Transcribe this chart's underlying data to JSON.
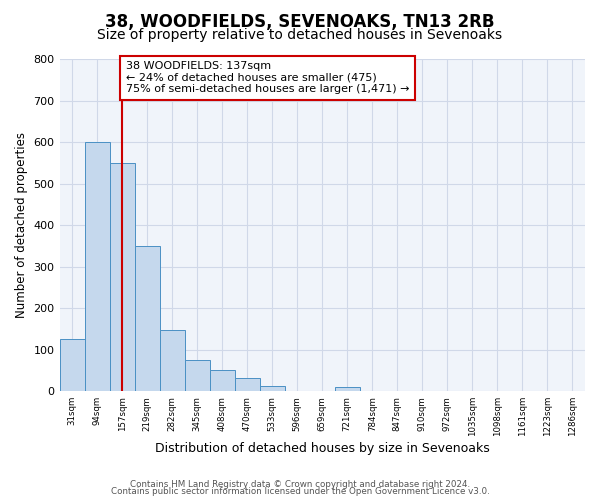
{
  "title": "38, WOODFIELDS, SEVENOAKS, TN13 2RB",
  "subtitle": "Size of property relative to detached houses in Sevenoaks",
  "xlabel": "Distribution of detached houses by size in Sevenoaks",
  "ylabel": "Number of detached properties",
  "bin_labels": [
    "31sqm",
    "94sqm",
    "157sqm",
    "219sqm",
    "282sqm",
    "345sqm",
    "408sqm",
    "470sqm",
    "533sqm",
    "596sqm",
    "659sqm",
    "721sqm",
    "784sqm",
    "847sqm",
    "910sqm",
    "972sqm",
    "1035sqm",
    "1098sqm",
    "1161sqm",
    "1223sqm",
    "1286sqm"
  ],
  "bar_heights": [
    125,
    600,
    550,
    350,
    148,
    75,
    50,
    33,
    13,
    0,
    0,
    10,
    0,
    0,
    0,
    0,
    0,
    0,
    0,
    0,
    0
  ],
  "bar_color": "#c5d8ed",
  "bar_edge_color": "#4a90c4",
  "vline_x": 2.0,
  "vline_color": "#cc0000",
  "annotation_text": "38 WOODFIELDS: 137sqm\n← 24% of detached houses are smaller (475)\n75% of semi-detached houses are larger (1,471) →",
  "annotation_box_color": "#ffffff",
  "annotation_box_edge": "#cc0000",
  "ylim": [
    0,
    800
  ],
  "yticks": [
    0,
    100,
    200,
    300,
    400,
    500,
    600,
    700,
    800
  ],
  "grid_color": "#d0d8e8",
  "bg_color": "#f0f4fa",
  "footer_line1": "Contains HM Land Registry data © Crown copyright and database right 2024.",
  "footer_line2": "Contains public sector information licensed under the Open Government Licence v3.0.",
  "title_fontsize": 12,
  "subtitle_fontsize": 10
}
